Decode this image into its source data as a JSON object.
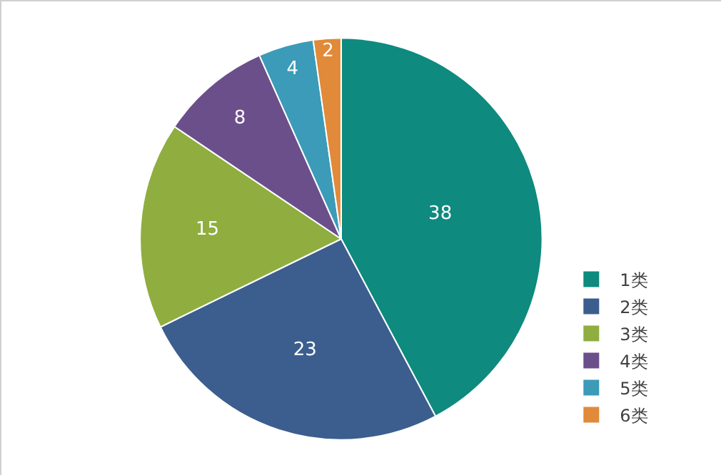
{
  "chart_data": {
    "type": "pie",
    "categories": [
      "1类",
      "2类",
      "3类",
      "4类",
      "5类",
      "6类"
    ],
    "values": [
      38,
      23,
      15,
      8,
      4,
      2
    ],
    "colors": [
      "#0e8a7f",
      "#3b5e8e",
      "#8fae3f",
      "#6b4f8a",
      "#3b9bb8",
      "#e08a3a"
    ],
    "data_labels": true,
    "legend": "right"
  }
}
